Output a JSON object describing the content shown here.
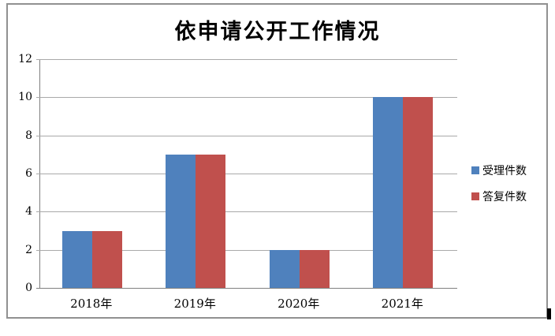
{
  "chart_data": {
    "type": "bar",
    "title": "依申请公开工作情况",
    "categories": [
      "2018年",
      "2019年",
      "2020年",
      "2021年"
    ],
    "series": [
      {
        "name": "受理件数",
        "color": "#4F81BD",
        "values": [
          3,
          7,
          2,
          10
        ]
      },
      {
        "name": "答复件数",
        "color": "#C0504D",
        "values": [
          3,
          7,
          2,
          10
        ]
      }
    ],
    "xlabel": "",
    "ylabel": "",
    "ylim": [
      0,
      12
    ],
    "yticks": [
      0,
      2,
      4,
      6,
      8,
      10,
      12
    ],
    "grid": "horizontal",
    "legend_position": "right"
  },
  "colors": {
    "background": "#FFFFFF",
    "frame_border": "#919191",
    "gridline": "#A9A9A9",
    "axis": "#808080",
    "text": "#000000"
  }
}
